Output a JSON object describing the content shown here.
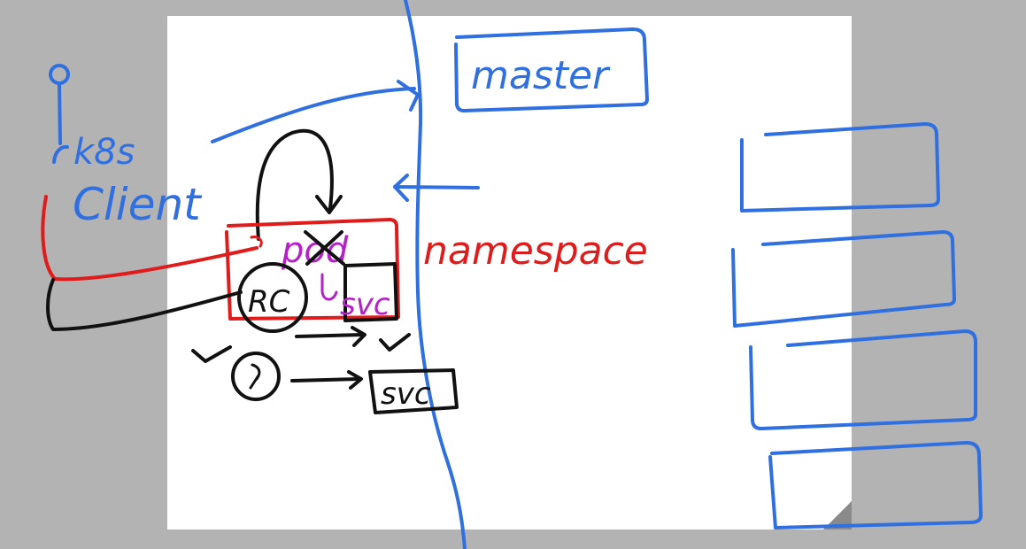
{
  "whiteboard": {
    "colors": {
      "background": "#b3b3b3",
      "page": "#ffffff",
      "corner_fold": "#8a8a8a",
      "ink_blue": "#2f6fe0",
      "ink_red": "#e01b1b",
      "ink_black": "#111111",
      "ink_purple": "#b421c8"
    },
    "labels": {
      "master": "master",
      "k8s": "k8s",
      "client": "Client",
      "pod": "pod",
      "rc": "RC",
      "svc_inner": "svc",
      "svc_outer": "svc",
      "namespace": "namespace"
    }
  }
}
